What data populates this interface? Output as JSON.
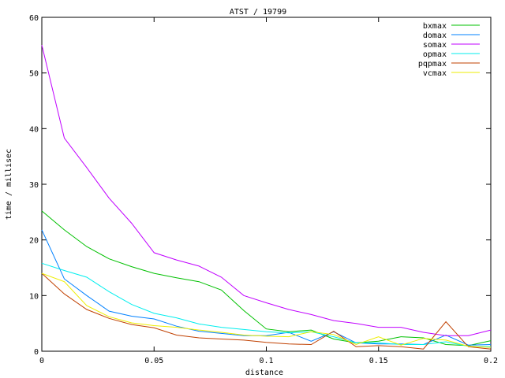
{
  "chart_data": {
    "type": "line",
    "title": "ATST / 19799",
    "xlabel": "distance",
    "ylabel": "time / millisec",
    "xlim": [
      0,
      0.2
    ],
    "ylim": [
      0,
      60
    ],
    "xticks": [
      "0",
      "0.05",
      "0.1",
      "0.15",
      "0.2"
    ],
    "yticks": [
      "0",
      "10",
      "20",
      "30",
      "40",
      "50",
      "60"
    ],
    "grid": false,
    "legend_position": "top-right",
    "x": [
      0,
      0.01,
      0.02,
      0.03,
      0.04,
      0.05,
      0.06,
      0.07,
      0.08,
      0.09,
      0.1,
      0.11,
      0.12,
      0.13,
      0.14,
      0.15,
      0.16,
      0.17,
      0.18,
      0.19,
      0.2
    ],
    "series": [
      {
        "name": "bxmax",
        "color": "#00c000",
        "values": [
          25.2,
          21.8,
          18.8,
          16.6,
          15.2,
          14,
          13.2,
          12.5,
          11,
          7.3,
          4,
          3.5,
          3.8,
          2.2,
          1.5,
          1.8,
          2.6,
          2.4,
          1.2,
          1,
          1.9
        ]
      },
      {
        "name": "domax",
        "color": "#0080ff",
        "values": [
          21.8,
          13,
          10,
          7.2,
          6.3,
          5.8,
          4.5,
          3.6,
          3.2,
          2.8,
          2.8,
          3.4,
          1.8,
          3.5,
          1.5,
          1.3,
          1.3,
          1.2,
          2.9,
          1.1,
          1.2
        ]
      },
      {
        "name": "somax",
        "color": "#c000ff",
        "values": [
          55,
          38.3,
          33,
          27.5,
          23,
          17.7,
          16.4,
          15.3,
          13.3,
          10,
          8.7,
          7.5,
          6.6,
          5.5,
          5,
          4.3,
          4.3,
          3.4,
          2.8,
          2.8,
          3.8
        ]
      },
      {
        "name": "opmax",
        "color": "#00eeee",
        "values": [
          15.8,
          14.5,
          13.3,
          10.7,
          8.4,
          6.8,
          6,
          4.9,
          4.3,
          3.9,
          3.5,
          3.3,
          3.5,
          2.6,
          1.5,
          1.5,
          1.2,
          1.2,
          1.7,
          0.9,
          0.8
        ]
      },
      {
        "name": "pqpmax",
        "color": "#c04000",
        "values": [
          14,
          10.3,
          7.5,
          5.9,
          4.8,
          4.2,
          2.9,
          2.4,
          2.2,
          2,
          1.6,
          1.3,
          1.2,
          3.6,
          0.8,
          1,
          0.8,
          0.4,
          5.3,
          0.8,
          0.4
        ]
      },
      {
        "name": "vcmax",
        "color": "#eeee00",
        "values": [
          14,
          12.5,
          8.2,
          6.2,
          5.1,
          4.6,
          4.3,
          3.8,
          3.4,
          2.9,
          2.7,
          2.6,
          3.5,
          3,
          1.2,
          2.6,
          1.1,
          2.3,
          2,
          0.9,
          0.7
        ]
      }
    ]
  }
}
